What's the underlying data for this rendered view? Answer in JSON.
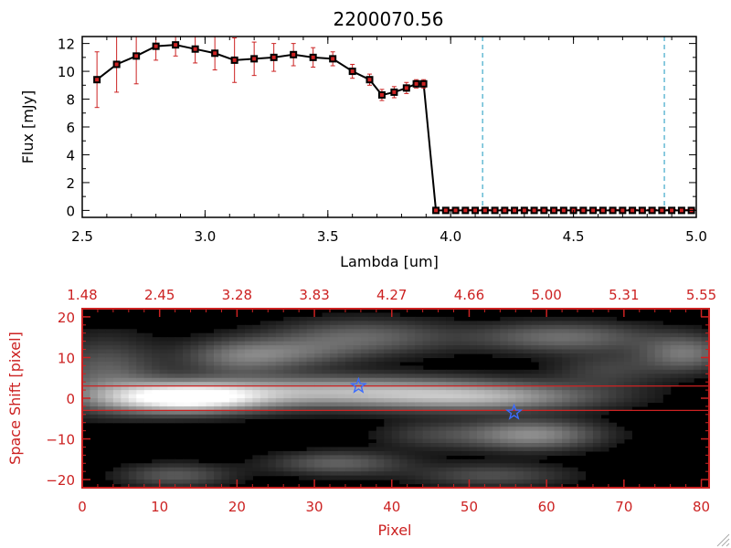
{
  "colors": {
    "axis": "#000000",
    "accent": "#cc2222",
    "errorbar": "#cc2222",
    "marker": "#000000",
    "cutoff_line": "#3fa9c9",
    "background_2d": "#000000",
    "star": "#3b6cff"
  },
  "chart_data": [
    {
      "type": "line",
      "title": "2200070.56",
      "xlabel": "Lambda [um]",
      "ylabel": "Flux [mJy]",
      "xlim": [
        2.5,
        5.0
      ],
      "ylim": [
        -0.5,
        12.5
      ],
      "xticks": [
        2.5,
        3.0,
        3.5,
        4.0,
        4.5,
        5.0
      ],
      "xtick_labels": [
        "2.5",
        "3.0",
        "3.5",
        "4.0",
        "4.5",
        "5.0"
      ],
      "yticks": [
        0,
        2,
        4,
        6,
        8,
        10,
        12
      ],
      "ytick_labels": [
        "0",
        "2",
        "4",
        "6",
        "8",
        "10",
        "12"
      ],
      "series": [
        {
          "name": "flux",
          "x": [
            2.56,
            2.64,
            2.72,
            2.8,
            2.88,
            2.96,
            3.04,
            3.12,
            3.2,
            3.28,
            3.36,
            3.44,
            3.52,
            3.6,
            3.67,
            3.72,
            3.77,
            3.82,
            3.86,
            3.89,
            3.94,
            3.98,
            4.02,
            4.06,
            4.1,
            4.14,
            4.18,
            4.22,
            4.26,
            4.3,
            4.34,
            4.38,
            4.42,
            4.46,
            4.5,
            4.54,
            4.58,
            4.62,
            4.66,
            4.7,
            4.74,
            4.78,
            4.82,
            4.86,
            4.9,
            4.94,
            4.98
          ],
          "y": [
            9.4,
            10.5,
            11.1,
            11.8,
            11.9,
            11.6,
            11.3,
            10.8,
            10.9,
            11.0,
            11.2,
            11.0,
            10.9,
            10.0,
            9.4,
            8.3,
            8.5,
            8.8,
            9.1,
            9.1,
            0,
            0,
            0,
            0,
            0,
            0,
            0,
            0,
            0,
            0,
            0,
            0,
            0,
            0,
            0,
            0,
            0,
            0,
            0,
            0,
            0,
            0,
            0,
            0,
            0,
            0,
            0
          ],
          "yerr": [
            2.0,
            2.0,
            2.0,
            1.0,
            0.8,
            1.0,
            1.2,
            1.6,
            1.2,
            1.0,
            0.8,
            0.7,
            0.5,
            0.5,
            0.4,
            0.4,
            0.4,
            0.4,
            0.3,
            0.3,
            0,
            0,
            0,
            0,
            0,
            0,
            0,
            0,
            0,
            0,
            0,
            0,
            0,
            0,
            0,
            0,
            0,
            0,
            0,
            0,
            0,
            0,
            0,
            0,
            0,
            0,
            0
          ]
        }
      ],
      "vertical_lines": [
        4.13,
        4.87
      ]
    },
    {
      "type": "heatmap",
      "xlabel": "Pixel",
      "ylabel": "Space Shift [pixel]",
      "xlim": [
        0,
        81
      ],
      "ylim": [
        -22,
        22
      ],
      "xticks": [
        0,
        10,
        20,
        30,
        40,
        50,
        60,
        70,
        80
      ],
      "xtick_labels": [
        "0",
        "10",
        "20",
        "30",
        "40",
        "50",
        "60",
        "70",
        "80"
      ],
      "yticks": [
        -20,
        -10,
        0,
        10,
        20
      ],
      "ytick_labels": [
        "−20",
        "−10",
        "0",
        "10",
        "20"
      ],
      "top_axis": {
        "positions": [
          0,
          10,
          20,
          30,
          40,
          50,
          60,
          70,
          80
        ],
        "labels": [
          "1.48",
          "2.45",
          "3.28",
          "3.83",
          "4.27",
          "4.66",
          "5.00",
          "5.31",
          "5.55"
        ]
      },
      "horizontal_lines": [
        3,
        -3
      ],
      "stars": [
        {
          "x": 35.7,
          "y": 3.0
        },
        {
          "x": 55.8,
          "y": -3.5
        }
      ],
      "blobs": [
        {
          "x": 13,
          "y": 0,
          "sx": 7,
          "sy": 2.4,
          "a": 1.0
        },
        {
          "x": 33,
          "y": 1.6,
          "sx": 16,
          "sy": 2.6,
          "a": 0.62
        },
        {
          "x": 52,
          "y": 0,
          "sx": 10,
          "sy": 2.2,
          "a": 0.42
        },
        {
          "x": 3,
          "y": 6,
          "sx": 5,
          "sy": 6,
          "a": 0.3
        },
        {
          "x": 20,
          "y": 10,
          "sx": 5,
          "sy": 3,
          "a": 0.3
        },
        {
          "x": 36,
          "y": 15,
          "sx": 8,
          "sy": 3,
          "a": 0.32
        },
        {
          "x": 27,
          "y": 11,
          "sx": 6,
          "sy": 2.5,
          "a": 0.24
        },
        {
          "x": 62,
          "y": 15,
          "sx": 8,
          "sy": 2.5,
          "a": 0.35
        },
        {
          "x": 78,
          "y": 11,
          "sx": 4,
          "sy": 3,
          "a": 0.38
        },
        {
          "x": 58,
          "y": -9,
          "sx": 6,
          "sy": 2.5,
          "a": 0.48
        },
        {
          "x": 33,
          "y": -16,
          "sx": 6,
          "sy": 2,
          "a": 0.3
        },
        {
          "x": 12,
          "y": -19,
          "sx": 5,
          "sy": 2,
          "a": 0.27
        },
        {
          "x": 53,
          "y": -19,
          "sx": 7,
          "sy": 2,
          "a": 0.23
        },
        {
          "x": 68,
          "y": 7,
          "sx": 5,
          "sy": 3,
          "a": 0.18
        },
        {
          "x": 45,
          "y": -9,
          "sx": 5,
          "sy": 2.5,
          "a": 0.16
        }
      ]
    }
  ]
}
